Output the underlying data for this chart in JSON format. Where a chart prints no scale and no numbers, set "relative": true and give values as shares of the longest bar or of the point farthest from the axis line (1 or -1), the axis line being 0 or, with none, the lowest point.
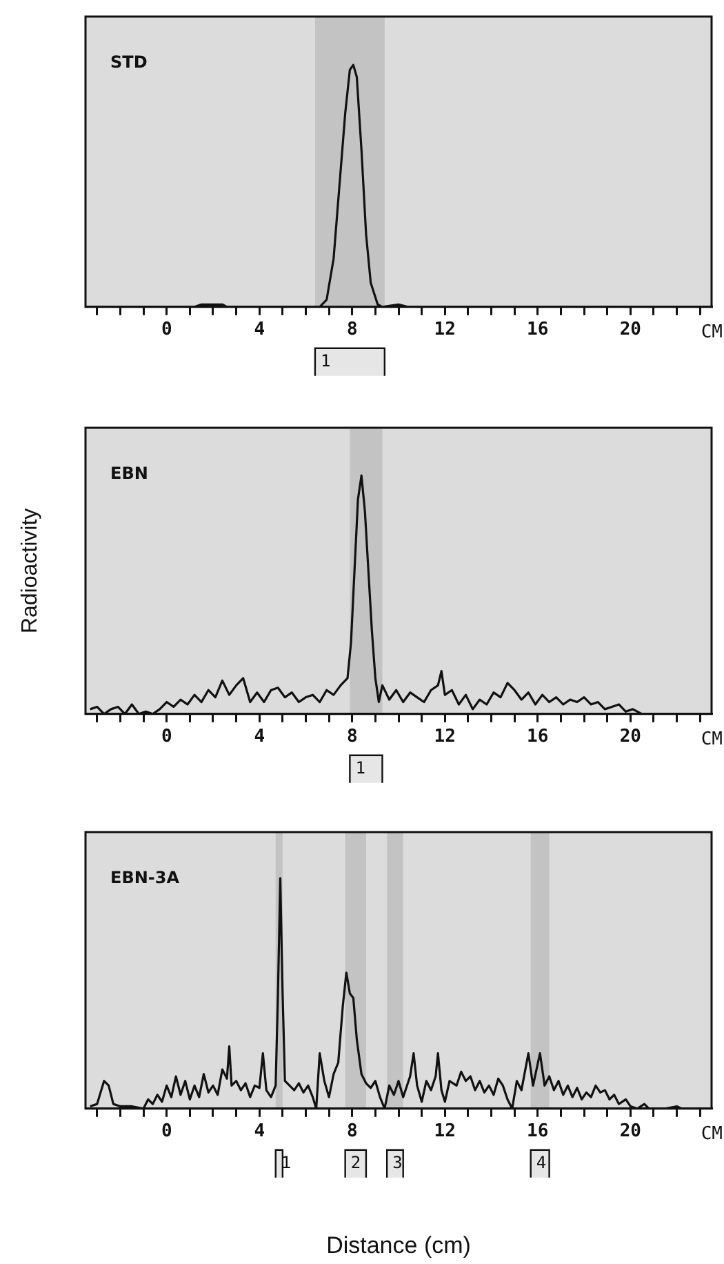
{
  "chart_data": [
    {
      "type": "line",
      "title": "STD",
      "xlabel": "CM",
      "relative": true,
      "grid": false,
      "legend": false,
      "marker": "none",
      "line_style": "solid",
      "xlim": [
        -3.5,
        23.5
      ],
      "xticks": [
        {
          "value": -3,
          "label": null
        },
        {
          "value": -2,
          "label": null
        },
        {
          "value": -1,
          "label": null
        },
        0,
        {
          "value": 1,
          "label": null
        },
        {
          "value": 2,
          "label": null
        },
        {
          "value": 3,
          "label": null
        },
        4,
        {
          "value": 5,
          "label": null
        },
        {
          "value": 6,
          "label": null
        },
        {
          "value": 7,
          "label": null
        },
        8,
        {
          "value": 9,
          "label": null
        },
        {
          "value": 10,
          "label": null
        },
        {
          "value": 11,
          "label": null
        },
        12,
        {
          "value": 13,
          "label": null
        },
        {
          "value": 14,
          "label": null
        },
        {
          "value": 15,
          "label": null
        },
        16,
        {
          "value": 17,
          "label": null
        },
        {
          "value": 18,
          "label": null
        },
        {
          "value": 19,
          "label": null
        },
        20,
        {
          "value": 21,
          "label": null
        },
        {
          "value": 22,
          "label": null
        },
        {
          "value": 23,
          "label": null
        }
      ],
      "x": [
        -3.5,
        1.2,
        1.5,
        2.4,
        2.6,
        6.6,
        6.9,
        7.2,
        7.45,
        7.7,
        7.9,
        8.05,
        8.2,
        8.4,
        8.6,
        8.8,
        9.1,
        9.3,
        10.0,
        10.4,
        23.5
      ],
      "series": [
        {
          "color": "#111111",
          "values": [
            0,
            0,
            0.01,
            0.01,
            0,
            0,
            0.03,
            0.2,
            0.5,
            0.8,
            0.98,
            1,
            0.95,
            0.65,
            0.3,
            0.1,
            0.01,
            0,
            0.01,
            0,
            0
          ]
        }
      ],
      "bands": [
        {
          "axis": "x",
          "from": 6.4,
          "to": 9.4,
          "label": "1"
        }
      ]
    },
    {
      "type": "line",
      "title": "EBN",
      "xlabel": "CM",
      "ylabel": "Radioactivity",
      "relative": true,
      "grid": false,
      "legend": false,
      "marker": "none",
      "line_style": "solid",
      "xlim": [
        -3.5,
        23.5
      ],
      "xticks": [
        {
          "value": -3,
          "label": null
        },
        {
          "value": -2,
          "label": null
        },
        {
          "value": -1,
          "label": null
        },
        0,
        {
          "value": 1,
          "label": null
        },
        {
          "value": 2,
          "label": null
        },
        {
          "value": 3,
          "label": null
        },
        4,
        {
          "value": 5,
          "label": null
        },
        {
          "value": 6,
          "label": null
        },
        {
          "value": 7,
          "label": null
        },
        8,
        {
          "value": 9,
          "label": null
        },
        {
          "value": 10,
          "label": null
        },
        {
          "value": 11,
          "label": null
        },
        12,
        {
          "value": 13,
          "label": null
        },
        {
          "value": 14,
          "label": null
        },
        {
          "value": 15,
          "label": null
        },
        16,
        {
          "value": 17,
          "label": null
        },
        {
          "value": 18,
          "label": null
        },
        {
          "value": 19,
          "label": null
        },
        20,
        {
          "value": 21,
          "label": null
        },
        {
          "value": 22,
          "label": null
        },
        {
          "value": 23,
          "label": null
        }
      ],
      "x": [
        -3.3,
        -3.0,
        -2.7,
        -2.4,
        -2.1,
        -1.8,
        -1.5,
        -1.2,
        -0.9,
        -0.6,
        -0.3,
        0,
        0.3,
        0.6,
        0.9,
        1.2,
        1.5,
        1.8,
        2.1,
        2.4,
        2.7,
        3.0,
        3.3,
        3.6,
        3.9,
        4.2,
        4.5,
        4.8,
        5.1,
        5.4,
        5.7,
        6.0,
        6.3,
        6.6,
        6.9,
        7.2,
        7.5,
        7.8,
        7.95,
        8.1,
        8.25,
        8.4,
        8.55,
        8.7,
        8.85,
        9.0,
        9.15,
        9.3,
        9.6,
        9.9,
        10.2,
        10.5,
        10.8,
        11.1,
        11.4,
        11.7,
        11.85,
        12.0,
        12.3,
        12.6,
        12.9,
        13.2,
        13.5,
        13.8,
        14.1,
        14.4,
        14.7,
        15.0,
        15.3,
        15.6,
        15.9,
        16.2,
        16.5,
        16.8,
        17.1,
        17.4,
        17.7,
        18.0,
        18.3,
        18.6,
        18.9,
        19.2,
        19.5,
        19.8,
        20.1,
        20.5,
        21
      ],
      "series": [
        {
          "color": "#111111",
          "values": [
            0.02,
            0.03,
            0.0,
            0.02,
            0.03,
            0.0,
            0.04,
            0.0,
            0.01,
            0.0,
            0.02,
            0.05,
            0.03,
            0.06,
            0.04,
            0.08,
            0.05,
            0.1,
            0.07,
            0.14,
            0.08,
            0.12,
            0.15,
            0.05,
            0.09,
            0.05,
            0.1,
            0.11,
            0.07,
            0.09,
            0.05,
            0.07,
            0.08,
            0.05,
            0.1,
            0.08,
            0.12,
            0.15,
            0.3,
            0.6,
            0.9,
            1,
            0.85,
            0.6,
            0.35,
            0.15,
            0.05,
            0.12,
            0.06,
            0.1,
            0.05,
            0.09,
            0.07,
            0.05,
            0.1,
            0.12,
            0.18,
            0.08,
            0.1,
            0.04,
            0.08,
            0.02,
            0.06,
            0.04,
            0.09,
            0.07,
            0.13,
            0.1,
            0.06,
            0.09,
            0.04,
            0.08,
            0.05,
            0.07,
            0.04,
            0.06,
            0.05,
            0.07,
            0.04,
            0.05,
            0.02,
            0.03,
            0.04,
            0.01,
            0.02,
            0.0,
            0
          ]
        }
      ],
      "bands": [
        {
          "axis": "x",
          "from": 7.9,
          "to": 9.3,
          "label": "1"
        }
      ]
    },
    {
      "type": "line",
      "title": "EBN-3A",
      "xlabel": "CM",
      "relative": true,
      "grid": false,
      "legend": false,
      "marker": "none",
      "line_style": "solid",
      "xlim": [
        -3.5,
        23.5
      ],
      "xticks": [
        {
          "value": -3,
          "label": null
        },
        {
          "value": -2,
          "label": null
        },
        {
          "value": -1,
          "label": null
        },
        0,
        {
          "value": 1,
          "label": null
        },
        {
          "value": 2,
          "label": null
        },
        {
          "value": 3,
          "label": null
        },
        4,
        {
          "value": 5,
          "label": null
        },
        {
          "value": 6,
          "label": null
        },
        {
          "value": 7,
          "label": null
        },
        8,
        {
          "value": 9,
          "label": null
        },
        {
          "value": 10,
          "label": null
        },
        {
          "value": 11,
          "label": null
        },
        12,
        {
          "value": 13,
          "label": null
        },
        {
          "value": 14,
          "label": null
        },
        {
          "value": 15,
          "label": null
        },
        16,
        {
          "value": 17,
          "label": null
        },
        {
          "value": 18,
          "label": null
        },
        {
          "value": 19,
          "label": null
        },
        20,
        {
          "value": 21,
          "label": null
        },
        {
          "value": 22,
          "label": null
        },
        {
          "value": 23,
          "label": null
        }
      ],
      "x": [
        -3.3,
        -3.0,
        -2.7,
        -2.5,
        -2.3,
        -2.0,
        -1.5,
        -1.0,
        -0.8,
        -0.6,
        -0.4,
        -0.2,
        0.0,
        0.2,
        0.4,
        0.6,
        0.8,
        1.0,
        1.2,
        1.4,
        1.6,
        1.8,
        2.0,
        2.2,
        2.4,
        2.6,
        2.7,
        2.8,
        3.0,
        3.2,
        3.4,
        3.6,
        3.8,
        4.0,
        4.15,
        4.3,
        4.5,
        4.7,
        4.8,
        4.9,
        5.0,
        5.1,
        5.3,
        5.5,
        5.7,
        5.9,
        6.1,
        6.3,
        6.45,
        6.6,
        6.8,
        7.0,
        7.2,
        7.4,
        7.6,
        7.75,
        7.9,
        8.05,
        8.2,
        8.4,
        8.6,
        8.8,
        9.0,
        9.2,
        9.4,
        9.6,
        9.8,
        10.0,
        10.2,
        10.5,
        10.65,
        10.8,
        11.0,
        11.2,
        11.4,
        11.6,
        11.7,
        11.85,
        12.0,
        12.2,
        12.5,
        12.7,
        12.9,
        13.1,
        13.3,
        13.5,
        13.7,
        13.9,
        14.1,
        14.3,
        14.5,
        14.7,
        14.9,
        15.1,
        15.3,
        15.6,
        15.8,
        16.1,
        16.3,
        16.5,
        16.7,
        16.9,
        17.1,
        17.3,
        17.5,
        17.7,
        17.9,
        18.1,
        18.3,
        18.5,
        18.7,
        18.9,
        19.1,
        19.3,
        19.5,
        19.8,
        20.0,
        20.3,
        20.6,
        20.8,
        21.5,
        22.0,
        22.2
      ],
      "series": [
        {
          "color": "#111111",
          "values": [
            0.01,
            0.02,
            0.12,
            0.1,
            0.02,
            0.01,
            0.01,
            0.0,
            0.04,
            0.02,
            0.06,
            0.03,
            0.1,
            0.05,
            0.14,
            0.06,
            0.12,
            0.04,
            0.1,
            0.05,
            0.15,
            0.07,
            0.1,
            0.06,
            0.17,
            0.13,
            0.27,
            0.1,
            0.12,
            0.08,
            0.11,
            0.05,
            0.1,
            0.09,
            0.24,
            0.08,
            0.05,
            0.1,
            0.5,
            1.0,
            0.5,
            0.12,
            0.1,
            0.08,
            0.11,
            0.07,
            0.1,
            0.05,
            0.0,
            0.24,
            0.12,
            0.05,
            0.15,
            0.2,
            0.45,
            0.59,
            0.5,
            0.48,
            0.3,
            0.15,
            0.11,
            0.09,
            0.12,
            0.05,
            0.0,
            0.1,
            0.06,
            0.12,
            0.05,
            0.14,
            0.24,
            0.1,
            0.03,
            0.12,
            0.08,
            0.14,
            0.24,
            0.08,
            0.03,
            0.12,
            0.1,
            0.16,
            0.12,
            0.14,
            0.08,
            0.12,
            0.07,
            0.1,
            0.06,
            0.13,
            0.1,
            0.04,
            0.0,
            0.12,
            0.08,
            0.24,
            0.1,
            0.24,
            0.1,
            0.14,
            0.08,
            0.12,
            0.06,
            0.1,
            0.05,
            0.09,
            0.04,
            0.07,
            0.05,
            0.1,
            0.07,
            0.08,
            0.04,
            0.06,
            0.02,
            0.04,
            0.01,
            0.0,
            0.02,
            0.0,
            0.0,
            0.01,
            0.0
          ]
        }
      ],
      "bands": [
        {
          "axis": "x",
          "from": 4.7,
          "to": 5.0,
          "label": "1"
        },
        {
          "axis": "x",
          "from": 7.7,
          "to": 8.6,
          "label": "2"
        },
        {
          "axis": "x",
          "from": 9.5,
          "to": 10.2,
          "label": "3"
        },
        {
          "axis": "x",
          "from": 15.7,
          "to": 16.5,
          "label": "4"
        }
      ],
      "annotations": [
        "Distance (cm)"
      ]
    }
  ]
}
